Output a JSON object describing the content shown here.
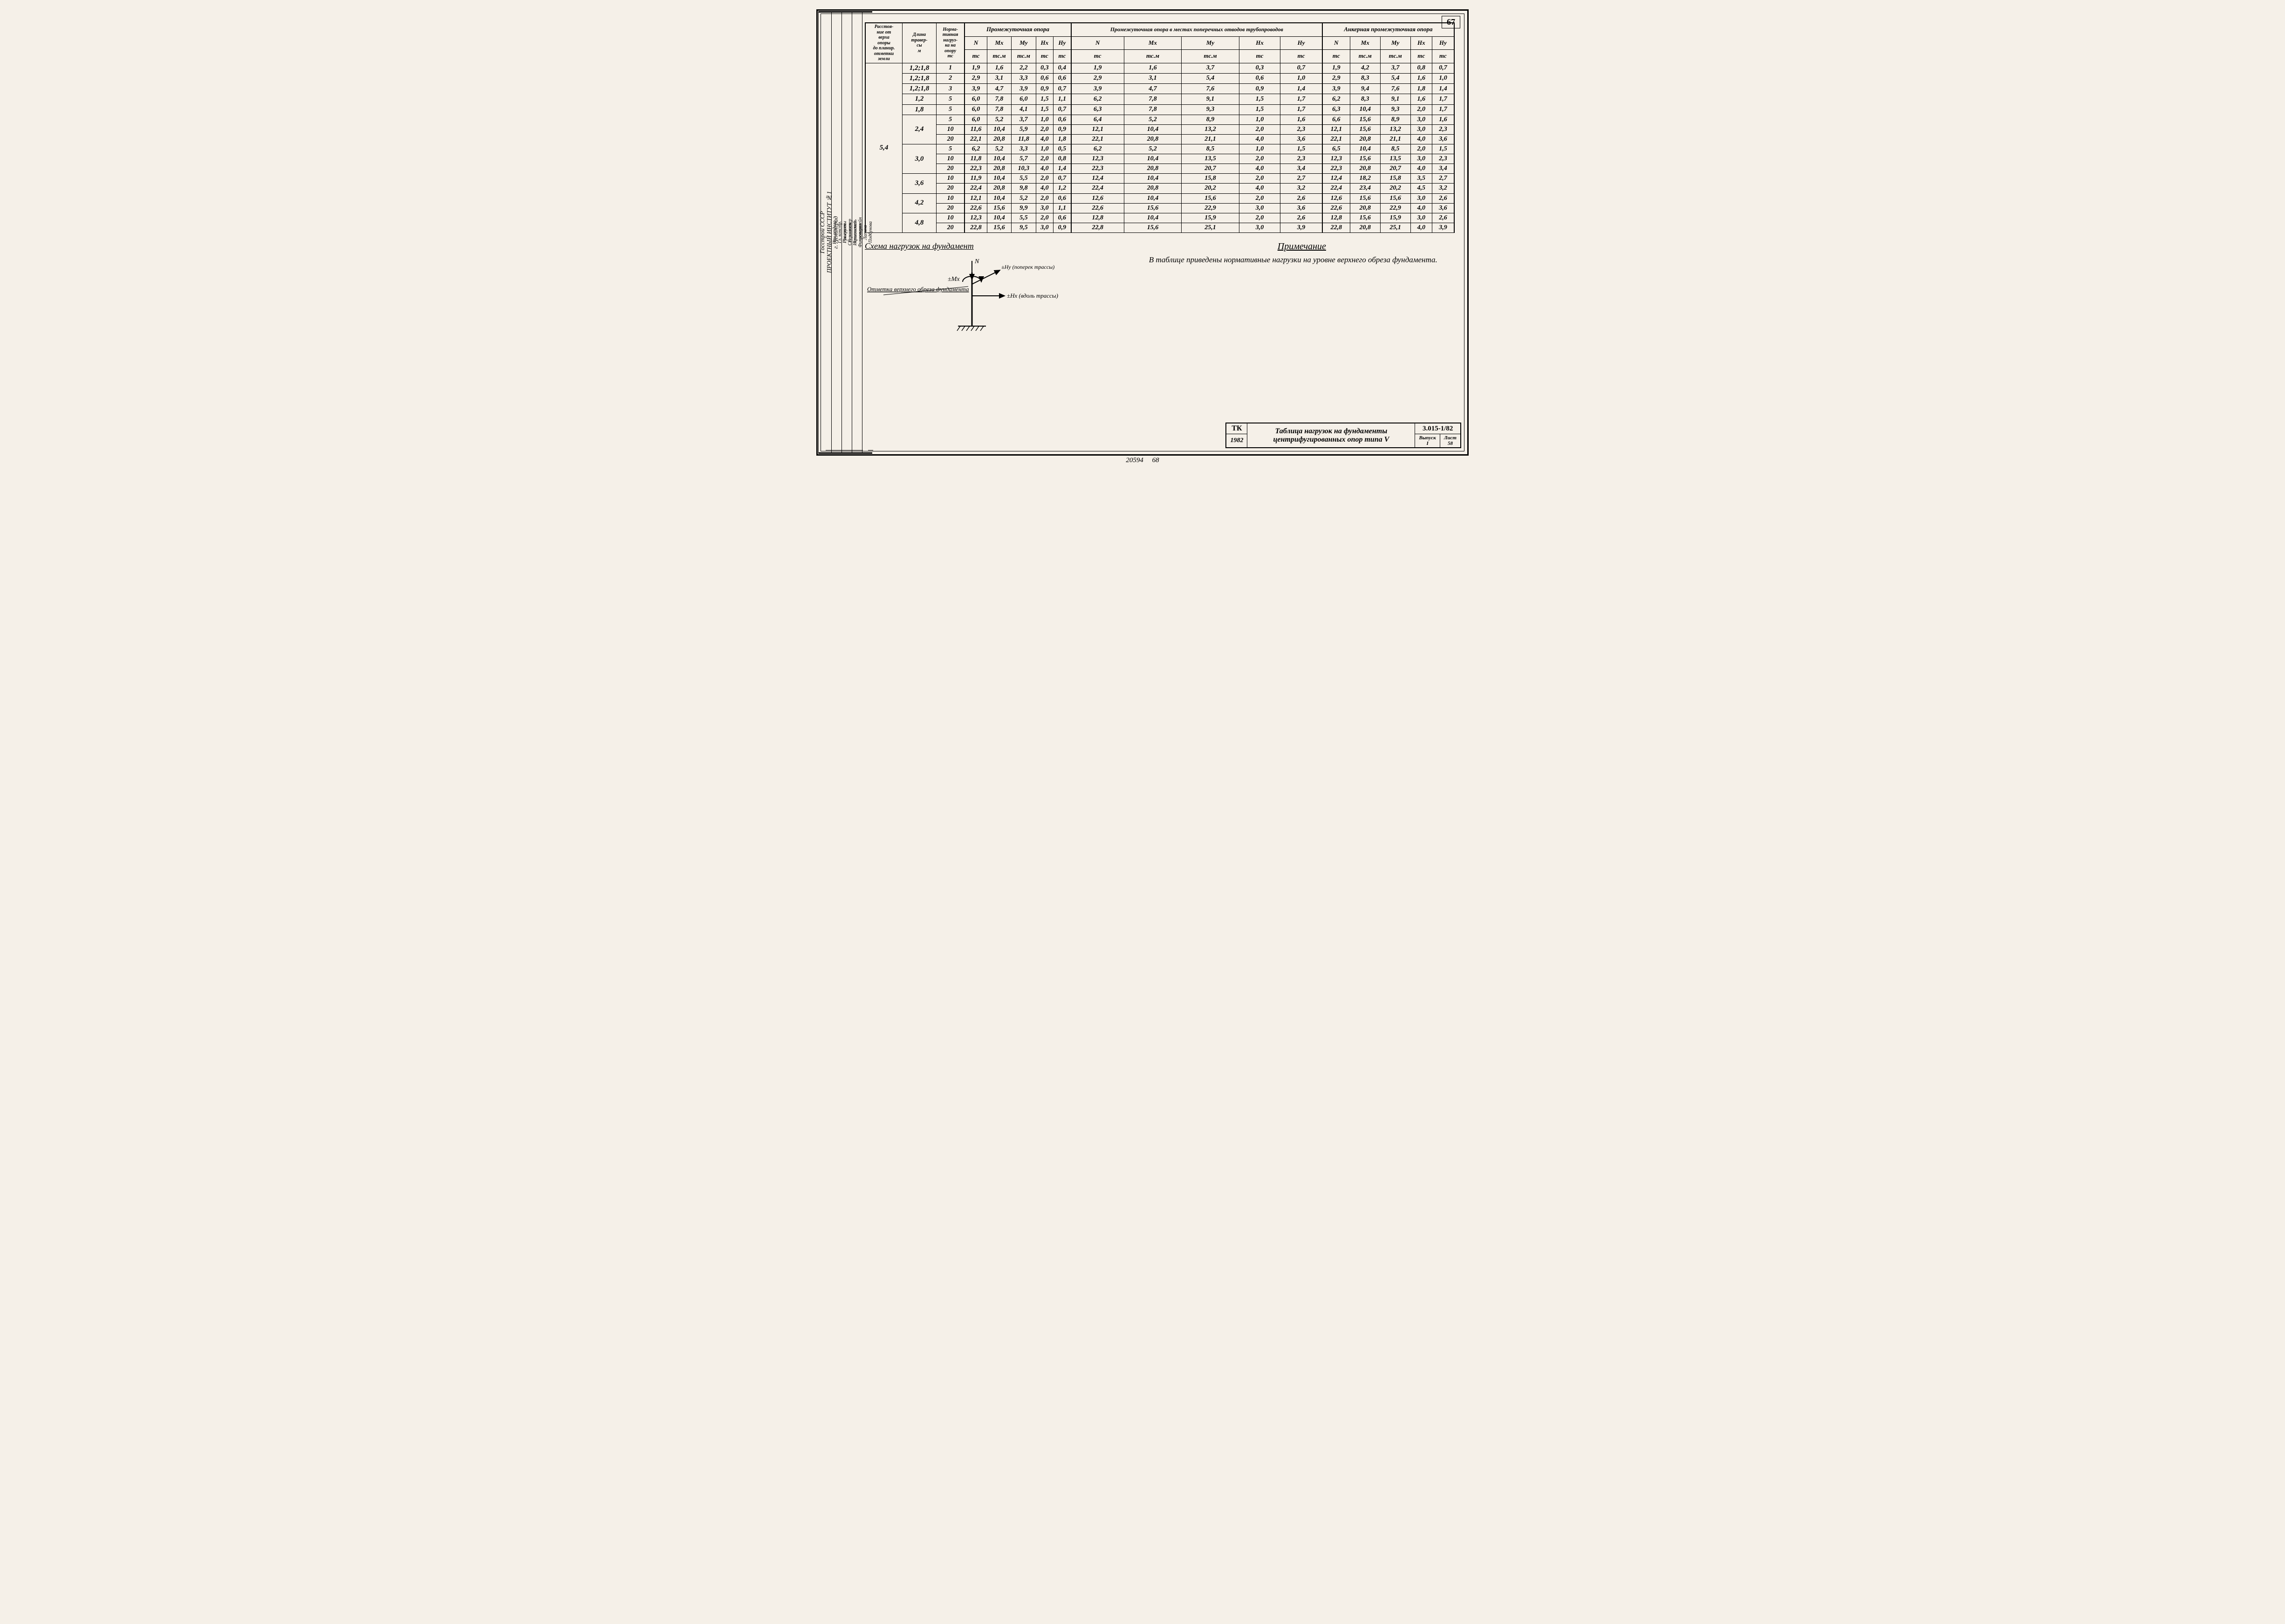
{
  "page_number": "67",
  "side": {
    "org_lines": [
      "Госстрой СССР",
      "ПРОЕКТНЫЙ ИНСТИТУТ №1",
      "г. Ленинград"
    ],
    "roles": [
      "Нач.отдела",
      "Гл. констр.",
      "Рук.группы",
      "Ст. инженер"
    ],
    "names": [
      "Зиновьев",
      "Гершанок",
      "Аршавский",
      "Финкельштейн"
    ],
    "col3": [
      "Исполнитель",
      "проверил"
    ],
    "col4": [
      "Лапина",
      "Подбунова"
    ]
  },
  "header": {
    "c1": "Расстоя-\nние от\nверха\nопоры\nдо планир.\nотметки\nземли",
    "c2": "Длина\nтравер-\nсы\nм",
    "c3": "Норма-\nтивная\nнагруз-\nка на\nопору\nтс",
    "group1": "Промежуточная опора",
    "group2": "Промежуточная опора в местах поперечных отводов трубопроводов",
    "group3": "Анкерная промежуточная     опора",
    "sub": [
      "N",
      "Mx",
      "My",
      "Hx",
      "Hy"
    ],
    "units": [
      "тс",
      "тс.м",
      "тс.м",
      "тс",
      "тс"
    ]
  },
  "col1_value": "5,4",
  "rows": [
    {
      "len": "1,2;1,8",
      "load": "1",
      "g1": [
        "1,9",
        "1,6",
        "2,2",
        "0,3",
        "0,4"
      ],
      "g2": [
        "1,9",
        "1,6",
        "3,7",
        "0,3",
        "0,7"
      ],
      "g3": [
        "1,9",
        "4,2",
        "3,7",
        "0,8",
        "0,7"
      ]
    },
    {
      "len": "1,2;1,8",
      "load": "2",
      "g1": [
        "2,9",
        "3,1",
        "3,3",
        "0,6",
        "0,6"
      ],
      "g2": [
        "2,9",
        "3,1",
        "5,4",
        "0,6",
        "1,0"
      ],
      "g3": [
        "2,9",
        "8,3",
        "5,4",
        "1,6",
        "1,0"
      ]
    },
    {
      "len": "1,2;1,8",
      "load": "3",
      "g1": [
        "3,9",
        "4,7",
        "3,9",
        "0,9",
        "0,7"
      ],
      "g2": [
        "3,9",
        "4,7",
        "7,6",
        "0,9",
        "1,4"
      ],
      "g3": [
        "3,9",
        "9,4",
        "7,6",
        "1,8",
        "1,4"
      ]
    },
    {
      "len": "1,2",
      "load": "5",
      "g1": [
        "6,0",
        "7,8",
        "6,0",
        "1,5",
        "1,1"
      ],
      "g2": [
        "6,2",
        "7,8",
        "9,1",
        "1,5",
        "1,7"
      ],
      "g3": [
        "6,2",
        "8,3",
        "9,1",
        "1,6",
        "1,7"
      ]
    },
    {
      "len": "1,8",
      "load": "5",
      "g1": [
        "6,0",
        "7,8",
        "4,1",
        "1,5",
        "0,7"
      ],
      "g2": [
        "6,3",
        "7,8",
        "9,3",
        "1,5",
        "1,7"
      ],
      "g3": [
        "6,3",
        "10,4",
        "9,3",
        "2,0",
        "1,7"
      ]
    },
    {
      "len": "2,4",
      "len_rs": 3,
      "load": "5",
      "g1": [
        "6,0",
        "5,2",
        "3,7",
        "1,0",
        "0,6"
      ],
      "g2": [
        "6,4",
        "5,2",
        "8,9",
        "1,0",
        "1,6"
      ],
      "g3": [
        "6,6",
        "15,6",
        "8,9",
        "3,0",
        "1,6"
      ]
    },
    {
      "load": "10",
      "g1": [
        "11,6",
        "10,4",
        "5,9",
        "2,0",
        "0,9"
      ],
      "g2": [
        "12,1",
        "10,4",
        "13,2",
        "2,0",
        "2,3"
      ],
      "g3": [
        "12,1",
        "15,6",
        "13,2",
        "3,0",
        "2,3"
      ]
    },
    {
      "load": "20",
      "g1": [
        "22,1",
        "20,8",
        "11,8",
        "4,0",
        "1,8"
      ],
      "g2": [
        "22,1",
        "20,8",
        "21,1",
        "4,0",
        "3,6"
      ],
      "g3": [
        "22,1",
        "20,8",
        "21,1",
        "4,0",
        "3,6"
      ]
    },
    {
      "len": "3,0",
      "len_rs": 3,
      "load": "5",
      "g1": [
        "6,2",
        "5,2",
        "3,3",
        "1,0",
        "0,5"
      ],
      "g2": [
        "6,2",
        "5,2",
        "8,5",
        "1,0",
        "1,5"
      ],
      "g3": [
        "6,5",
        "10,4",
        "8,5",
        "2,0",
        "1,5"
      ]
    },
    {
      "load": "10",
      "g1": [
        "11,8",
        "10,4",
        "5,7",
        "2,0",
        "0,8"
      ],
      "g2": [
        "12,3",
        "10,4",
        "13,5",
        "2,0",
        "2,3"
      ],
      "g3": [
        "12,3",
        "15,6",
        "13,5",
        "3,0",
        "2,3"
      ]
    },
    {
      "load": "20",
      "g1": [
        "22,3",
        "20,8",
        "10,3",
        "4,0",
        "1,4"
      ],
      "g2": [
        "22,3",
        "20,8",
        "20,7",
        "4,0",
        "3,4"
      ],
      "g3": [
        "22,3",
        "20,8",
        "20,7",
        "4,0",
        "3,4"
      ]
    },
    {
      "len": "3,6",
      "len_rs": 2,
      "load": "10",
      "g1": [
        "11,9",
        "10,4",
        "5,5",
        "2,0",
        "0,7"
      ],
      "g2": [
        "12,4",
        "10,4",
        "15,8",
        "2,0",
        "2,7"
      ],
      "g3": [
        "12,4",
        "18,2",
        "15,8",
        "3,5",
        "2,7"
      ]
    },
    {
      "load": "20",
      "g1": [
        "22,4",
        "20,8",
        "9,8",
        "4,0",
        "1,2"
      ],
      "g2": [
        "22,4",
        "20,8",
        "20,2",
        "4,0",
        "3,2"
      ],
      "g3": [
        "22,4",
        "23,4",
        "20,2",
        "4,5",
        "3,2"
      ]
    },
    {
      "len": "4,2",
      "len_rs": 2,
      "load": "10",
      "g1": [
        "12,1",
        "10,4",
        "5,2",
        "2,0",
        "0,6"
      ],
      "g2": [
        "12,6",
        "10,4",
        "15,6",
        "2,0",
        "2,6"
      ],
      "g3": [
        "12,6",
        "15,6",
        "15,6",
        "3,0",
        "2,6"
      ]
    },
    {
      "load": "20",
      "g1": [
        "22,6",
        "15,6",
        "9,9",
        "3,0",
        "1,1"
      ],
      "g2": [
        "22,6",
        "15,6",
        "22,9",
        "3,0",
        "3,6"
      ],
      "g3": [
        "22,6",
        "20,8",
        "22,9",
        "4,0",
        "3,6"
      ]
    },
    {
      "len": "4,8",
      "len_rs": 2,
      "load": "10",
      "g1": [
        "12,3",
        "10,4",
        "5,5",
        "2,0",
        "0,6"
      ],
      "g2": [
        "12,8",
        "10,4",
        "15,9",
        "2,0",
        "2,6"
      ],
      "g3": [
        "12,8",
        "15,6",
        "15,9",
        "3,0",
        "2,6"
      ]
    },
    {
      "load": "20",
      "g1": [
        "22,8",
        "15,6",
        "9,5",
        "3,0",
        "0,9"
      ],
      "g2": [
        "22,8",
        "15,6",
        "25,1",
        "3,0",
        "3,9"
      ],
      "g3": [
        "22,8",
        "20,8",
        "25,1",
        "4,0",
        "3,9"
      ]
    }
  ],
  "scheme": {
    "title": "Схема нагрузок на фундамент",
    "label_top": "Отметка верхнего обреза фундамента",
    "n": "N",
    "mx": "±Mx",
    "hy": "±Hy (поперек трассы)",
    "hx": "±Hx (вдоль трассы)"
  },
  "note": {
    "title": "Примечание",
    "body": "В таблице приведены нормативные нагрузки на уровне верхнего обреза фундамента."
  },
  "stamp": {
    "tk": "ТК",
    "year": "1982",
    "title": "Таблица нагрузок на фундаменты центрифугированных опор типа V",
    "docnum": "3.015-1/82",
    "issue_label": "Выпуск",
    "issue": "I",
    "sheet_label": "Лист",
    "sheet": "58"
  },
  "footer": [
    "20594",
    "68"
  ]
}
